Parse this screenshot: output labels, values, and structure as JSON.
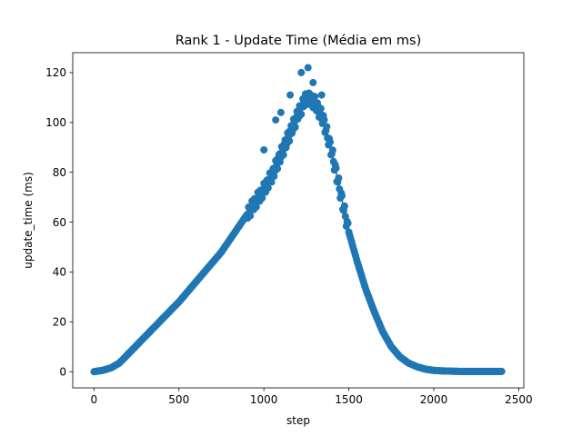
{
  "chart_data": {
    "type": "line",
    "title": "Rank 1 - Update Time (Média em ms)",
    "xlabel": "step",
    "ylabel": "update_time (ms)",
    "xlim": [
      -125,
      2530
    ],
    "ylim": [
      -6.5,
      128
    ],
    "xticks": [
      0,
      500,
      1000,
      1500,
      2000,
      2500
    ],
    "yticks": [
      0,
      20,
      40,
      60,
      80,
      100,
      120
    ],
    "grid": false,
    "legend": "none",
    "marker": "circle",
    "series_color": "#1f77b4",
    "series": [
      {
        "x": [
          0,
          50,
          100,
          150,
          200,
          250,
          300,
          350,
          400,
          450,
          500,
          550,
          600,
          650,
          700,
          750,
          800,
          850,
          900,
          950,
          1000,
          1050,
          1100,
          1150,
          1200,
          1250,
          1300,
          1350,
          1400,
          1450,
          1500,
          1550,
          1600,
          1650,
          1700,
          1750,
          1800,
          1850,
          1900,
          1950,
          2000,
          2050,
          2100,
          2150,
          2200,
          2250,
          2300,
          2350,
          2400
        ],
        "y": [
          0,
          0.5,
          1.5,
          3.5,
          7,
          10.5,
          14,
          17.5,
          21,
          24.5,
          28,
          32,
          36,
          40,
          44,
          48,
          53,
          58,
          63,
          68,
          73,
          79,
          87,
          95,
          103,
          110,
          108,
          101,
          88,
          72,
          56,
          44,
          33,
          24,
          16,
          10,
          6,
          3.5,
          2,
          1,
          0.5,
          0.3,
          0.2,
          0.1,
          0.1,
          0.1,
          0.1,
          0.1,
          0.1
        ],
        "outliers": [
          {
            "x": 1000,
            "y": 89
          },
          {
            "x": 1070,
            "y": 101
          },
          {
            "x": 1100,
            "y": 104
          },
          {
            "x": 1155,
            "y": 111
          },
          {
            "x": 1220,
            "y": 120
          },
          {
            "x": 1260,
            "y": 122
          },
          {
            "x": 1290,
            "y": 116
          },
          {
            "x": 1340,
            "y": 111
          }
        ]
      }
    ]
  }
}
